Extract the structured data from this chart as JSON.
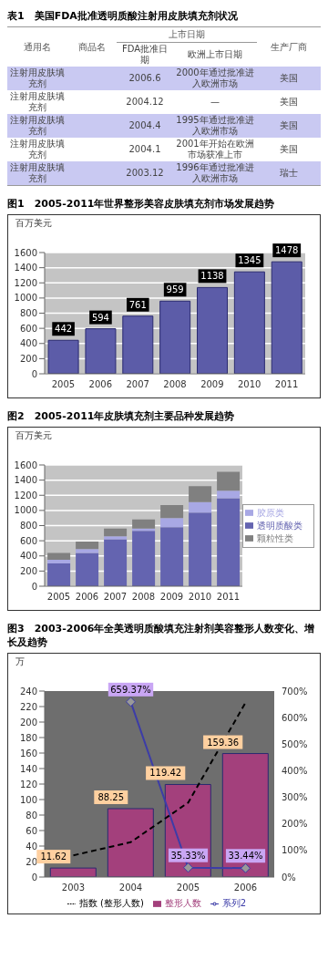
{
  "chart_data": [
    {
      "type": "other",
      "title": "表1　美国FDA批准透明质酸注射用皮肤填充剂状况",
      "annotations": [
        "通用名",
        "商品名",
        "上市日期",
        "生产厂商",
        "FDA批准日期",
        "欧洲上市日期",
        "注射用皮肤填充剂",
        "2006.6",
        "2000年通过批准进入欧洲市场",
        "美国",
        "注射用皮肤填充剂",
        "2004.12",
        "—",
        "美国",
        "注射用皮肤填充剂",
        "2004.4",
        "1995年通过批准进入欧洲市场",
        "美国",
        "注射用皮肤填充剂",
        "2004.1",
        "2001年开始在欧洲市场获准上市",
        "美国",
        "注射用皮肤填充剂",
        "2003.12",
        "1996年通过批准进入欧洲市场",
        "瑞士"
      ]
    },
    {
      "type": "bar",
      "title": "图1　2005-2011年世界整形美容皮肤填充剂市场发展趋势",
      "ylabel": "百万美元",
      "categories": [
        "2005",
        "2006",
        "2007",
        "2008",
        "2009",
        "2010",
        "2011"
      ],
      "values": [
        442,
        594,
        761,
        959,
        1138,
        1345,
        1478
      ],
      "color": "#5c5ca8",
      "ylim": [
        0,
        1600
      ],
      "yticks": [
        0,
        200,
        400,
        600,
        800,
        1000,
        1200,
        1400,
        1600
      ],
      "grid": "y",
      "data_labels": true
    },
    {
      "type": "bar",
      "title": "图2　2005-2011年皮肤填充剂主要品种发展趋势",
      "ylabel": "百万美元",
      "categories": [
        "2005",
        "2006",
        "2007",
        "2008",
        "2009",
        "2010",
        "2011"
      ],
      "stacked": true,
      "legend": "right",
      "grid": "y",
      "ylim": [
        0,
        1600
      ],
      "yticks": [
        0,
        200,
        400,
        600,
        800,
        1000,
        1200,
        1400,
        1600
      ],
      "series": [
        {
          "name": "透明质酸类",
          "color": "#6464b0",
          "values": [
            300,
            440,
            620,
            730,
            780,
            970,
            1160
          ]
        },
        {
          "name": "胶原类",
          "color": "#a8a8e4",
          "values": [
            50,
            50,
            40,
            30,
            120,
            140,
            100
          ]
        },
        {
          "name": "颗粒性类",
          "color": "#808080",
          "values": [
            90,
            100,
            100,
            120,
            170,
            210,
            250
          ]
        }
      ]
    },
    {
      "type": "bar",
      "title": "图3　2003-2006年全美透明质酸填充注射剂美容整形人数变化、增长及趋势",
      "ylabel": "万",
      "categories": [
        "2003",
        "2004",
        "2005",
        "2006"
      ],
      "ylim": [
        0,
        240
      ],
      "yticks": [
        0,
        20,
        40,
        60,
        80,
        100,
        120,
        140,
        160,
        180,
        200,
        220,
        240
      ],
      "y2lim": [
        0,
        700
      ],
      "y2ticks": [
        {
          "value": 0,
          "label": "0%"
        },
        {
          "value": 100,
          "label": "100%"
        },
        {
          "value": 200,
          "label": "200%"
        },
        {
          "value": 300,
          "label": "300%"
        },
        {
          "value": 400,
          "label": "400%"
        },
        {
          "value": 500,
          "label": "500%"
        },
        {
          "value": 600,
          "label": "600%"
        },
        {
          "value": 700,
          "label": "700%"
        }
      ],
      "legend": "bottom",
      "series": [
        {
          "name": "整形人数",
          "type": "bar",
          "color": "#a3407c",
          "values": [
            11.62,
            88.25,
            119.42,
            159.36
          ],
          "value_labels": [
            "11.62",
            "88.25",
            "119.42",
            "159.36"
          ]
        },
        {
          "name": "系列2",
          "type": "line",
          "axis": "y2",
          "color": "#3c3ca8",
          "marker": "diamond",
          "values": [
            null,
            659.37,
            35.33,
            33.44
          ],
          "value_labels": [
            null,
            "659.37%",
            "35.33%",
            "33.44%"
          ]
        },
        {
          "name": "指数 (整形人数)",
          "type": "line",
          "color": "#000000",
          "marker": "none",
          "line_style": "dashed",
          "values": [
            28,
            45,
            96,
            225
          ]
        }
      ]
    }
  ]
}
